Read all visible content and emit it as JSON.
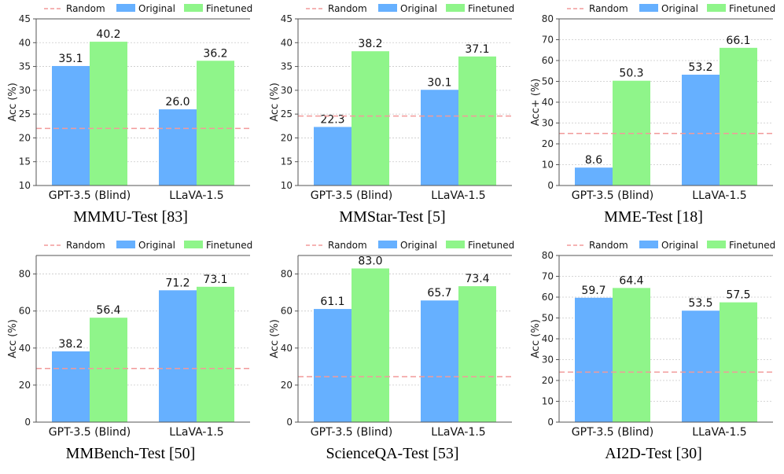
{
  "legend": {
    "random": "Random",
    "original": "Original",
    "finetuned": "Finetuned"
  },
  "colors": {
    "original": "#66b0ff",
    "finetuned": "#8ff58a",
    "random": "#f29a9a",
    "grid": "#c9c9c9",
    "axis": "#555555"
  },
  "chart_data": [
    {
      "type": "bar",
      "title": "MMMU-Test [83]",
      "ylabel": "Acc (%)",
      "categories": [
        "GPT-3.5 (Blind)",
        "LLaVA-1.5"
      ],
      "series": [
        {
          "name": "Original",
          "values": [
            35.1,
            26.0
          ],
          "labels": [
            "35.1",
            "26.0"
          ]
        },
        {
          "name": "Finetuned",
          "values": [
            40.2,
            36.2
          ],
          "labels": [
            "40.2",
            "36.2"
          ]
        }
      ],
      "random": 22,
      "ylim": [
        10,
        45
      ],
      "yticks": [
        10,
        15,
        20,
        25,
        30,
        35,
        40,
        45
      ],
      "grid": true,
      "legend": "top"
    },
    {
      "type": "bar",
      "title": "MMStar-Test [5]",
      "ylabel": "Acc (%)",
      "categories": [
        "GPT-3.5 (Blind)",
        "LLaVA-1.5"
      ],
      "series": [
        {
          "name": "Original",
          "values": [
            22.3,
            30.1
          ],
          "labels": [
            "22.3",
            "30.1"
          ]
        },
        {
          "name": "Finetuned",
          "values": [
            38.2,
            37.1
          ],
          "labels": [
            "38.2",
            "37.1"
          ]
        }
      ],
      "random": 24.6,
      "ylim": [
        10,
        45
      ],
      "yticks": [
        10,
        15,
        20,
        25,
        30,
        35,
        40,
        45
      ],
      "grid": true,
      "legend": "top"
    },
    {
      "type": "bar",
      "title": "MME-Test [18]",
      "ylabel": "Acc+ (%)",
      "categories": [
        "GPT-3.5 (Blind)",
        "LLaVA-1.5"
      ],
      "series": [
        {
          "name": "Original",
          "values": [
            8.6,
            53.2
          ],
          "labels": [
            "8.6",
            "53.2"
          ]
        },
        {
          "name": "Finetuned",
          "values": [
            50.3,
            66.1
          ],
          "labels": [
            "50.3",
            "66.1"
          ]
        }
      ],
      "random": 25,
      "ylim": [
        0,
        80
      ],
      "yticks": [
        0,
        10,
        20,
        30,
        40,
        50,
        60,
        70,
        80
      ],
      "grid": true,
      "legend": "top"
    },
    {
      "type": "bar",
      "title": "MMBench-Test [50]",
      "ylabel": "Acc (%)",
      "categories": [
        "GPT-3.5 (Blind)",
        "LLaVA-1.5"
      ],
      "series": [
        {
          "name": "Original",
          "values": [
            38.2,
            71.2
          ],
          "labels": [
            "38.2",
            "71.2"
          ]
        },
        {
          "name": "Finetuned",
          "values": [
            56.4,
            73.1
          ],
          "labels": [
            "56.4",
            "73.1"
          ]
        }
      ],
      "random": 29,
      "ylim": [
        0,
        90
      ],
      "yticks": [
        0,
        20,
        40,
        60,
        80
      ],
      "grid": true,
      "legend": "top"
    },
    {
      "type": "bar",
      "title": "ScienceQA-Test [53]",
      "ylabel": "Acc (%)",
      "categories": [
        "GPT-3.5 (Blind)",
        "LLaVA-1.5"
      ],
      "series": [
        {
          "name": "Original",
          "values": [
            61.1,
            65.7
          ],
          "labels": [
            "61.1",
            "65.7"
          ]
        },
        {
          "name": "Finetuned",
          "values": [
            83.0,
            73.4
          ],
          "labels": [
            "83.0",
            "73.4"
          ]
        }
      ],
      "random": 24.5,
      "ylim": [
        0,
        90
      ],
      "yticks": [
        0,
        20,
        40,
        60,
        80
      ],
      "grid": true,
      "legend": "top"
    },
    {
      "type": "bar",
      "title": "AI2D-Test [30]",
      "ylabel": "Acc (%)",
      "categories": [
        "GPT-3.5 (Blind)",
        "LLaVA-1.5"
      ],
      "series": [
        {
          "name": "Original",
          "values": [
            59.7,
            53.5
          ],
          "labels": [
            "59.7",
            "53.5"
          ]
        },
        {
          "name": "Finetuned",
          "values": [
            64.4,
            57.5
          ],
          "labels": [
            "64.4",
            "57.5"
          ]
        }
      ],
      "random": 24,
      "ylim": [
        0,
        80
      ],
      "yticks": [
        0,
        10,
        20,
        30,
        40,
        50,
        60,
        70,
        80
      ],
      "grid": true,
      "legend": "top"
    }
  ]
}
